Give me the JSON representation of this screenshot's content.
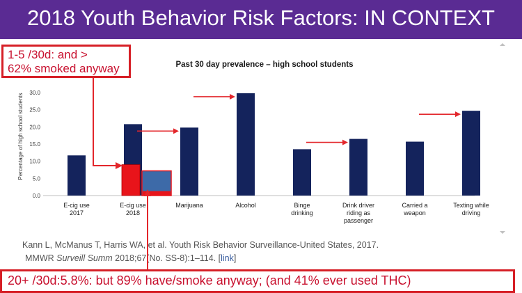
{
  "slide": {
    "title": "2018 Youth Behavior Risk Factors: IN CONTEXT",
    "callout_top": {
      "line1": "1-5 /30d:  and >",
      "line2": "62% smoked anyway"
    },
    "callout_bottom": "20+ /30d:5.8%: but 89% have/smoke anyway; (and 41% ever used THC)",
    "citation": {
      "line1": "Kann L, McManus T, Harris WA, et al. Youth Risk Behavior Surveillance-United States, 2017.",
      "line2_pre": "MMWR ",
      "line2_italic": "Surveill Summ",
      "line2_post": " 2018;67(No. SS-8):1–114. [",
      "link_text": "link",
      "line2_end": "]"
    }
  },
  "colors": {
    "title_bar": "#5a2b93",
    "bar": "#14235c",
    "highlight_red": "#e8141a",
    "highlight_blue": "#3d6aa8",
    "callout_border": "#d61f26",
    "arrow": "#e3262b"
  },
  "chart_data": {
    "type": "bar",
    "title": "Past 30 day prevalence – high school students",
    "ylabel": "Percentage of high school students",
    "ylim": [
      0,
      30
    ],
    "yticks": [
      0.0,
      5.0,
      10.0,
      15.0,
      20.0,
      25.0,
      30.0
    ],
    "y_tick_labels": [
      "0.0",
      "5.0",
      "10.0",
      "15.0",
      "20.0",
      "25.0",
      "30.0"
    ],
    "categories": [
      [
        "E-cig use",
        "2017"
      ],
      [
        "E-cig use",
        "2018"
      ],
      [
        "Marijuana"
      ],
      [
        "Alcohol"
      ],
      [
        "Binge",
        "drinking"
      ],
      [
        "Drink driver",
        "riding as",
        "passenger"
      ],
      [
        "Carried a",
        "weapon"
      ],
      [
        "Texting while",
        "driving"
      ]
    ],
    "values": [
      11.7,
      20.8,
      19.8,
      29.8,
      13.5,
      16.5,
      15.7,
      24.7
    ],
    "highlight_segments": [
      {
        "category_index": 1,
        "side": "left",
        "value": 9.0,
        "color": "red"
      },
      {
        "category_index": 1,
        "side": "right",
        "value": 7.2,
        "color": "blue",
        "inner_red_value": 1.3
      }
    ],
    "arrows_to_categories": [
      2,
      3,
      5,
      7
    ],
    "grid": false,
    "legend": "none"
  }
}
